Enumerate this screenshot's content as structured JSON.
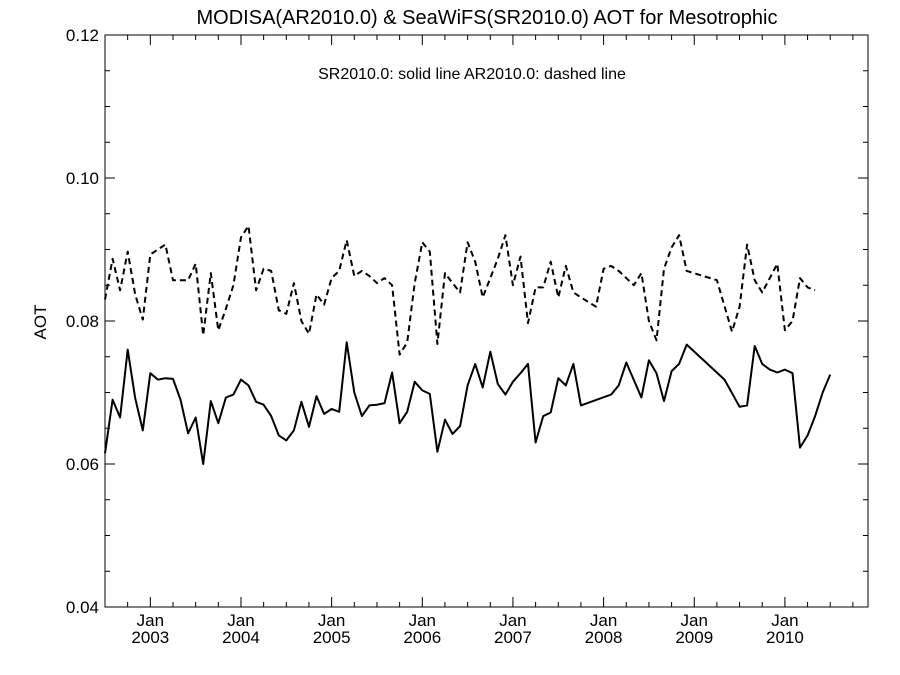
{
  "chart_data": {
    "type": "line",
    "title": "MODISA(AR2010.0) & SeaWiFS(SR2010.0)  AOT for Mesotrophic",
    "ylabel": "AOT",
    "xlabel": "",
    "annotation": "SR2010.0: solid line   AR2010.0: dashed line",
    "ylim": [
      0.04,
      0.12
    ],
    "xlim": [
      "2002-07",
      "2010-12"
    ],
    "y_ticks": [
      "0.04",
      "0.06",
      "0.08",
      "0.10",
      "0.12"
    ],
    "x_ticks": [
      {
        "month": "Jan",
        "year": "2003",
        "x": "2003-01"
      },
      {
        "month": "Jan",
        "year": "2004",
        "x": "2004-01"
      },
      {
        "month": "Jan",
        "year": "2005",
        "x": "2005-01"
      },
      {
        "month": "Jan",
        "year": "2006",
        "x": "2006-01"
      },
      {
        "month": "Jan",
        "year": "2007",
        "x": "2007-01"
      },
      {
        "month": "Jan",
        "year": "2008",
        "x": "2008-01"
      },
      {
        "month": "Jan",
        "year": "2009",
        "x": "2009-01"
      },
      {
        "month": "Jan",
        "year": "2010",
        "x": "2010-01"
      }
    ],
    "grid": false,
    "series": [
      {
        "name": "SR2010.0",
        "style": "solid",
        "color": "#000000",
        "points": [
          [
            "2002-07",
            0.0615
          ],
          [
            "2002-08",
            0.069
          ],
          [
            "2002-09",
            0.0665
          ],
          [
            "2002-10",
            0.076
          ],
          [
            "2002-11",
            0.0692
          ],
          [
            "2002-12",
            0.0647
          ],
          [
            "2003-01",
            0.0727
          ],
          [
            "2003-02",
            0.0718
          ],
          [
            "2003-03",
            0.072
          ],
          [
            "2003-04",
            0.0719
          ],
          [
            "2003-05",
            0.069
          ],
          [
            "2003-06",
            0.0643
          ],
          [
            "2003-07",
            0.0665
          ],
          [
            "2003-08",
            0.06
          ],
          [
            "2003-09",
            0.0688
          ],
          [
            "2003-10",
            0.0657
          ],
          [
            "2003-11",
            0.0693
          ],
          [
            "2003-12",
            0.0697
          ],
          [
            "2004-01",
            0.0718
          ],
          [
            "2004-02",
            0.071
          ],
          [
            "2004-03",
            0.0687
          ],
          [
            "2004-04",
            0.0683
          ],
          [
            "2004-05",
            0.0667
          ],
          [
            "2004-06",
            0.064
          ],
          [
            "2004-07",
            0.0633
          ],
          [
            "2004-08",
            0.0647
          ],
          [
            "2004-09",
            0.0687
          ],
          [
            "2004-10",
            0.0652
          ],
          [
            "2004-11",
            0.0695
          ],
          [
            "2004-12",
            0.067
          ],
          [
            "2005-01",
            0.0677
          ],
          [
            "2005-02",
            0.0673
          ],
          [
            "2005-03",
            0.077
          ],
          [
            "2005-04",
            0.07
          ],
          [
            "2005-05",
            0.0667
          ],
          [
            "2005-06",
            0.0682
          ],
          [
            "2005-07",
            0.0683
          ],
          [
            "2005-08",
            0.0685
          ],
          [
            "2005-09",
            0.0728
          ],
          [
            "2005-10",
            0.0657
          ],
          [
            "2005-11",
            0.0673
          ],
          [
            "2005-12",
            0.0715
          ],
          [
            "2006-01",
            0.0703
          ],
          [
            "2006-02",
            0.0698
          ],
          [
            "2006-03",
            0.0617
          ],
          [
            "2006-04",
            0.0662
          ],
          [
            "2006-05",
            0.0642
          ],
          [
            "2006-06",
            0.0653
          ],
          [
            "2006-07",
            0.071
          ],
          [
            "2006-08",
            0.074
          ],
          [
            "2006-09",
            0.0707
          ],
          [
            "2006-10",
            0.0757
          ],
          [
            "2006-11",
            0.0712
          ],
          [
            "2006-12",
            0.0697
          ],
          [
            "2007-01",
            0.0715
          ],
          [
            "2007-02",
            0.0727
          ],
          [
            "2007-03",
            0.074
          ],
          [
            "2007-04",
            0.063
          ],
          [
            "2007-05",
            0.0667
          ],
          [
            "2007-06",
            0.0672
          ],
          [
            "2007-07",
            0.072
          ],
          [
            "2007-08",
            0.071
          ],
          [
            "2007-09",
            0.074
          ],
          [
            "2007-10",
            0.0682
          ],
          [
            "2008-02",
            0.0697
          ],
          [
            "2008-03",
            0.071
          ],
          [
            "2008-04",
            0.0742
          ],
          [
            "2008-06",
            0.0693
          ],
          [
            "2008-07",
            0.0745
          ],
          [
            "2008-08",
            0.0727
          ],
          [
            "2008-09",
            0.0688
          ],
          [
            "2008-10",
            0.073
          ],
          [
            "2008-11",
            0.074
          ],
          [
            "2008-12",
            0.0767
          ],
          [
            "2009-05",
            0.0718
          ],
          [
            "2009-07",
            0.068
          ],
          [
            "2009-08",
            0.0682
          ],
          [
            "2009-09",
            0.0765
          ],
          [
            "2009-10",
            0.074
          ],
          [
            "2009-11",
            0.0732
          ],
          [
            "2009-12",
            0.0728
          ],
          [
            "2010-01",
            0.0732
          ],
          [
            "2010-02",
            0.0727
          ],
          [
            "2010-03",
            0.0623
          ],
          [
            "2010-04",
            0.064
          ],
          [
            "2010-05",
            0.0667
          ],
          [
            "2010-06",
            0.07
          ],
          [
            "2010-07",
            0.0725
          ]
        ]
      },
      {
        "name": "AR2010.0",
        "style": "dashed",
        "color": "#000000",
        "points": [
          [
            "2002-07",
            0.083
          ],
          [
            "2002-08",
            0.0887
          ],
          [
            "2002-09",
            0.0843
          ],
          [
            "2002-10",
            0.0897
          ],
          [
            "2002-11",
            0.0837
          ],
          [
            "2002-12",
            0.0802
          ],
          [
            "2003-01",
            0.0893
          ],
          [
            "2003-02",
            0.09
          ],
          [
            "2003-03",
            0.0907
          ],
          [
            "2003-04",
            0.0857
          ],
          [
            "2003-05",
            0.0857
          ],
          [
            "2003-06",
            0.0857
          ],
          [
            "2003-07",
            0.088
          ],
          [
            "2003-08",
            0.078
          ],
          [
            "2003-09",
            0.0867
          ],
          [
            "2003-10",
            0.0787
          ],
          [
            "2003-11",
            0.0817
          ],
          [
            "2003-12",
            0.085
          ],
          [
            "2004-01",
            0.0917
          ],
          [
            "2004-02",
            0.0933
          ],
          [
            "2004-03",
            0.0843
          ],
          [
            "2004-04",
            0.0873
          ],
          [
            "2004-05",
            0.087
          ],
          [
            "2004-06",
            0.0815
          ],
          [
            "2004-07",
            0.081
          ],
          [
            "2004-08",
            0.0853
          ],
          [
            "2004-09",
            0.08
          ],
          [
            "2004-10",
            0.0782
          ],
          [
            "2004-11",
            0.0837
          ],
          [
            "2004-12",
            0.0823
          ],
          [
            "2005-01",
            0.086
          ],
          [
            "2005-02",
            0.087
          ],
          [
            "2005-03",
            0.0913
          ],
          [
            "2005-04",
            0.0863
          ],
          [
            "2005-05",
            0.087
          ],
          [
            "2005-06",
            0.0863
          ],
          [
            "2005-07",
            0.0853
          ],
          [
            "2005-08",
            0.086
          ],
          [
            "2005-09",
            0.085
          ],
          [
            "2005-10",
            0.0753
          ],
          [
            "2005-11",
            0.077
          ],
          [
            "2005-12",
            0.0853
          ],
          [
            "2006-01",
            0.091
          ],
          [
            "2006-02",
            0.0897
          ],
          [
            "2006-03",
            0.0768
          ],
          [
            "2006-04",
            0.0867
          ],
          [
            "2006-05",
            0.0853
          ],
          [
            "2006-06",
            0.084
          ],
          [
            "2006-07",
            0.091
          ],
          [
            "2006-08",
            0.0883
          ],
          [
            "2006-09",
            0.0833
          ],
          [
            "2006-10",
            0.086
          ],
          [
            "2006-11",
            0.0887
          ],
          [
            "2006-12",
            0.092
          ],
          [
            "2007-01",
            0.085
          ],
          [
            "2007-02",
            0.089
          ],
          [
            "2007-03",
            0.0797
          ],
          [
            "2007-04",
            0.0847
          ],
          [
            "2007-05",
            0.0847
          ],
          [
            "2007-06",
            0.0883
          ],
          [
            "2007-07",
            0.0833
          ],
          [
            "2007-08",
            0.0877
          ],
          [
            "2007-09",
            0.084
          ],
          [
            "2007-10",
            0.0833
          ],
          [
            "2007-12",
            0.082
          ],
          [
            "2008-01",
            0.0873
          ],
          [
            "2008-02",
            0.0877
          ],
          [
            "2008-03",
            0.087
          ],
          [
            "2008-05",
            0.085
          ],
          [
            "2008-06",
            0.0867
          ],
          [
            "2008-07",
            0.08
          ],
          [
            "2008-08",
            0.0773
          ],
          [
            "2008-09",
            0.0873
          ],
          [
            "2008-10",
            0.0903
          ],
          [
            "2008-11",
            0.092
          ],
          [
            "2008-12",
            0.087
          ],
          [
            "2009-04",
            0.0857
          ],
          [
            "2009-06",
            0.0785
          ],
          [
            "2009-07",
            0.082
          ],
          [
            "2009-08",
            0.0907
          ],
          [
            "2009-09",
            0.0857
          ],
          [
            "2009-10",
            0.084
          ],
          [
            "2009-11",
            0.086
          ],
          [
            "2009-12",
            0.088
          ],
          [
            "2010-01",
            0.0787
          ],
          [
            "2010-02",
            0.08
          ],
          [
            "2010-03",
            0.086
          ],
          [
            "2010-04",
            0.0847
          ],
          [
            "2010-05",
            0.0843
          ]
        ]
      }
    ]
  }
}
